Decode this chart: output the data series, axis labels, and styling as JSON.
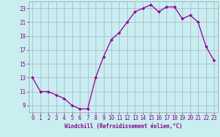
{
  "x": [
    0,
    1,
    2,
    3,
    4,
    5,
    6,
    7,
    8,
    9,
    10,
    11,
    12,
    13,
    14,
    15,
    16,
    17,
    18,
    19,
    20,
    21,
    22,
    23
  ],
  "y": [
    13,
    11,
    11,
    10.5,
    10,
    9,
    8.5,
    8.5,
    13,
    16,
    18.5,
    19.5,
    21,
    22.5,
    23,
    23.5,
    22.5,
    23.2,
    23.2,
    21.5,
    22,
    21,
    17.5,
    15.5
  ],
  "line_color": "#990099",
  "marker": "D",
  "marker_size": 2,
  "bg_color": "#c8eef0",
  "grid_color": "#aaaacc",
  "xlabel": "Windchill (Refroidissement éolien,°C)",
  "ylabel": "",
  "xlim": [
    -0.5,
    23.5
  ],
  "ylim": [
    8,
    24
  ],
  "yticks": [
    9,
    11,
    13,
    15,
    17,
    19,
    21,
    23
  ],
  "xticks": [
    0,
    1,
    2,
    3,
    4,
    5,
    6,
    7,
    8,
    9,
    10,
    11,
    12,
    13,
    14,
    15,
    16,
    17,
    18,
    19,
    20,
    21,
    22,
    23
  ],
  "linewidth": 1.0,
  "xlabel_fontsize": 5.5,
  "tick_fontsize": 5.5,
  "xlabel_color": "#880088"
}
